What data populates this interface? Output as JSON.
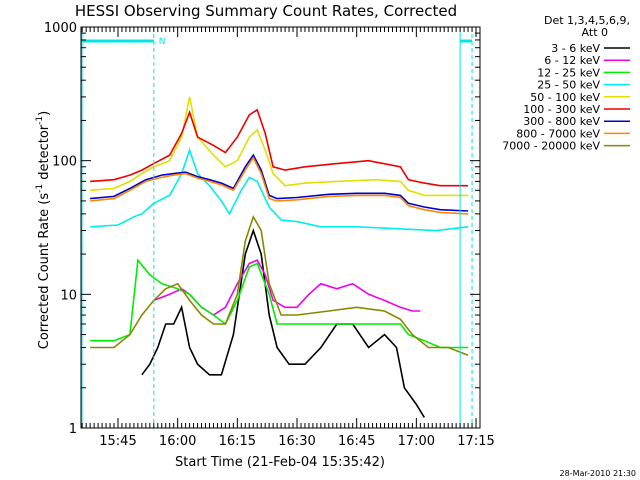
{
  "chart_data": {
    "type": "line",
    "title": "HESSI Observing Summary Count Rates, Corrected",
    "xlabel": "Start Time (21-Feb-04 15:35:42)",
    "ylabel_parts": [
      "Corrected Count Rate (s",
      "-1",
      " detector",
      "-1",
      ")"
    ],
    "yscale": "log",
    "ylim": [
      1,
      1000
    ],
    "xlim": [
      "15:35:42",
      "17:16:00"
    ],
    "y_ticks": [
      {
        "v": 1,
        "label": "1"
      },
      {
        "v": 10,
        "label": "10"
      },
      {
        "v": 100,
        "label": "100"
      },
      {
        "v": 1000,
        "label": "1000"
      }
    ],
    "x_ticks": [
      "15:45",
      "16:00",
      "16:15",
      "16:30",
      "16:45",
      "17:00",
      "17:15"
    ],
    "legend_header": [
      "Det 1,3,4,5,6,9,",
      "Att 0"
    ],
    "timestamp": "28-Mar-2010 21:30",
    "night_marks": {
      "label": "N",
      "day_start": "15:36",
      "night_start": "15:54",
      "night_end": "17:11",
      "day2_end": "17:14"
    },
    "series": [
      {
        "name": "3 - 6 keV",
        "color": "#000000",
        "points": [
          [
            "15:51",
            2.5
          ],
          [
            "15:53",
            3
          ],
          [
            "15:55",
            4
          ],
          [
            "15:57",
            6
          ],
          [
            "15:59",
            6
          ],
          [
            "16:01",
            8
          ],
          [
            "16:03",
            4
          ],
          [
            "16:05",
            3
          ],
          [
            "16:08",
            2.5
          ],
          [
            "16:11",
            2.5
          ],
          [
            "16:14",
            5
          ],
          [
            "16:17",
            20
          ],
          [
            "16:19",
            30
          ],
          [
            "16:21",
            20
          ],
          [
            "16:23",
            7
          ],
          [
            "16:25",
            4
          ],
          [
            "16:28",
            3
          ],
          [
            "16:32",
            3
          ],
          [
            "16:36",
            4
          ],
          [
            "16:40",
            6
          ],
          [
            "16:44",
            6
          ],
          [
            "16:48",
            4
          ],
          [
            "16:52",
            5
          ],
          [
            "16:55",
            4
          ],
          [
            "16:57",
            2
          ],
          [
            "17:00",
            1.5
          ],
          [
            "17:02",
            1.2
          ]
        ]
      },
      {
        "name": "6 - 12 keV",
        "color": "#ee00ee",
        "points": [
          [
            "15:54",
            9
          ],
          [
            "15:58",
            10
          ],
          [
            "16:01",
            11
          ],
          [
            "16:03",
            10
          ],
          [
            "16:06",
            8
          ],
          [
            "16:09",
            7
          ],
          [
            "16:12",
            8
          ],
          [
            "16:15",
            12
          ],
          [
            "16:18",
            17
          ],
          [
            "16:20",
            18
          ],
          [
            "16:22",
            14
          ],
          [
            "16:24",
            9
          ],
          [
            "16:27",
            8
          ],
          [
            "16:30",
            8
          ],
          [
            "16:33",
            10
          ],
          [
            "16:36",
            12
          ],
          [
            "16:40",
            11
          ],
          [
            "16:44",
            12
          ],
          [
            "16:48",
            10
          ],
          [
            "16:52",
            9
          ],
          [
            "16:56",
            8
          ],
          [
            "16:59",
            7.5
          ],
          [
            "17:01",
            7.5
          ]
        ]
      },
      {
        "name": "12 - 25 keV",
        "color": "#00ee00",
        "points": [
          [
            "15:38",
            4.5
          ],
          [
            "15:44",
            4.5
          ],
          [
            "15:48",
            5
          ],
          [
            "15:50",
            18
          ],
          [
            "15:53",
            14
          ],
          [
            "15:56",
            12
          ],
          [
            "16:00",
            11
          ],
          [
            "16:03",
            10
          ],
          [
            "16:06",
            8
          ],
          [
            "16:09",
            7
          ],
          [
            "16:12",
            6
          ],
          [
            "16:15",
            9
          ],
          [
            "16:18",
            16
          ],
          [
            "16:20",
            17
          ],
          [
            "16:23",
            10
          ],
          [
            "16:25",
            6
          ],
          [
            "16:30",
            6
          ],
          [
            "16:38",
            6
          ],
          [
            "16:45",
            6
          ],
          [
            "16:52",
            6
          ],
          [
            "16:56",
            6
          ],
          [
            "16:58",
            5
          ],
          [
            "17:02",
            4.5
          ],
          [
            "17:06",
            4
          ],
          [
            "17:13",
            4
          ]
        ]
      },
      {
        "name": "25 - 50 keV",
        "color": "#00eeee",
        "points": [
          [
            "15:38",
            32
          ],
          [
            "15:45",
            33
          ],
          [
            "15:49",
            38
          ],
          [
            "15:51",
            40
          ],
          [
            "15:54",
            48
          ],
          [
            "15:58",
            55
          ],
          [
            "16:01",
            80
          ],
          [
            "16:03",
            120
          ],
          [
            "16:05",
            80
          ],
          [
            "16:08",
            65
          ],
          [
            "16:11",
            50
          ],
          [
            "16:13",
            40
          ],
          [
            "16:16",
            60
          ],
          [
            "16:18",
            75
          ],
          [
            "16:20",
            70
          ],
          [
            "16:23",
            45
          ],
          [
            "16:26",
            36
          ],
          [
            "16:30",
            35
          ],
          [
            "16:36",
            32
          ],
          [
            "16:45",
            32
          ],
          [
            "16:55",
            31
          ],
          [
            "17:05",
            30
          ],
          [
            "17:13",
            32
          ]
        ]
      },
      {
        "name": "50 - 100 keV",
        "color": "#e0e000",
        "points": [
          [
            "15:38",
            60
          ],
          [
            "15:44",
            62
          ],
          [
            "15:48",
            70
          ],
          [
            "15:51",
            80
          ],
          [
            "15:54",
            90
          ],
          [
            "15:58",
            100
          ],
          [
            "16:01",
            150
          ],
          [
            "16:03",
            300
          ],
          [
            "16:05",
            150
          ],
          [
            "16:09",
            110
          ],
          [
            "16:12",
            90
          ],
          [
            "16:15",
            100
          ],
          [
            "16:18",
            150
          ],
          [
            "16:20",
            170
          ],
          [
            "16:22",
            120
          ],
          [
            "16:24",
            80
          ],
          [
            "16:27",
            65
          ],
          [
            "16:32",
            68
          ],
          [
            "16:40",
            70
          ],
          [
            "16:50",
            72
          ],
          [
            "16:56",
            70
          ],
          [
            "16:58",
            60
          ],
          [
            "17:02",
            55
          ],
          [
            "17:06",
            55
          ],
          [
            "17:13",
            55
          ]
        ]
      },
      {
        "name": "100 - 300 keV",
        "color": "#ee0000",
        "points": [
          [
            "15:38",
            70
          ],
          [
            "15:44",
            72
          ],
          [
            "15:48",
            78
          ],
          [
            "15:51",
            85
          ],
          [
            "15:54",
            95
          ],
          [
            "15:58",
            110
          ],
          [
            "16:01",
            160
          ],
          [
            "16:03",
            230
          ],
          [
            "16:05",
            150
          ],
          [
            "16:09",
            130
          ],
          [
            "16:12",
            115
          ],
          [
            "16:15",
            150
          ],
          [
            "16:18",
            220
          ],
          [
            "16:20",
            240
          ],
          [
            "16:22",
            160
          ],
          [
            "16:24",
            90
          ],
          [
            "16:27",
            85
          ],
          [
            "16:32",
            90
          ],
          [
            "16:40",
            95
          ],
          [
            "16:48",
            100
          ],
          [
            "16:56",
            90
          ],
          [
            "16:58",
            72
          ],
          [
            "17:02",
            68
          ],
          [
            "17:06",
            65
          ],
          [
            "17:13",
            65
          ]
        ]
      },
      {
        "name": "300 - 800 keV",
        "color": "#0000cc",
        "points": [
          [
            "15:38",
            52
          ],
          [
            "15:44",
            54
          ],
          [
            "15:48",
            62
          ],
          [
            "15:52",
            72
          ],
          [
            "15:56",
            78
          ],
          [
            "15:59",
            80
          ],
          [
            "16:02",
            82
          ],
          [
            "16:05",
            76
          ],
          [
            "16:08",
            72
          ],
          [
            "16:11",
            68
          ],
          [
            "16:14",
            62
          ],
          [
            "16:17",
            90
          ],
          [
            "16:19",
            110
          ],
          [
            "16:21",
            85
          ],
          [
            "16:23",
            55
          ],
          [
            "16:25",
            52
          ],
          [
            "16:30",
            53
          ],
          [
            "16:38",
            56
          ],
          [
            "16:45",
            57
          ],
          [
            "16:52",
            57
          ],
          [
            "16:56",
            55
          ],
          [
            "16:58",
            48
          ],
          [
            "17:02",
            45
          ],
          [
            "17:06",
            43
          ],
          [
            "17:13",
            42
          ]
        ]
      },
      {
        "name": "800 - 7000 keV",
        "color": "#ff8800",
        "points": [
          [
            "15:38",
            50
          ],
          [
            "15:44",
            52
          ],
          [
            "15:48",
            60
          ],
          [
            "15:52",
            70
          ],
          [
            "15:56",
            75
          ],
          [
            "15:59",
            78
          ],
          [
            "16:02",
            80
          ],
          [
            "16:05",
            74
          ],
          [
            "16:08",
            70
          ],
          [
            "16:11",
            66
          ],
          [
            "16:14",
            60
          ],
          [
            "16:17",
            85
          ],
          [
            "16:19",
            105
          ],
          [
            "16:21",
            80
          ],
          [
            "16:23",
            52
          ],
          [
            "16:25",
            50
          ],
          [
            "16:30",
            51
          ],
          [
            "16:38",
            54
          ],
          [
            "16:45",
            55
          ],
          [
            "16:52",
            55
          ],
          [
            "16:56",
            53
          ],
          [
            "16:58",
            46
          ],
          [
            "17:02",
            43
          ],
          [
            "17:06",
            41
          ],
          [
            "17:13",
            40
          ]
        ]
      },
      {
        "name": "7000 - 20000 keV",
        "color": "#888800",
        "points": [
          [
            "15:38",
            4
          ],
          [
            "15:44",
            4
          ],
          [
            "15:48",
            5
          ],
          [
            "15:51",
            7
          ],
          [
            "15:54",
            9
          ],
          [
            "15:57",
            11
          ],
          [
            "16:00",
            12
          ],
          [
            "16:03",
            9
          ],
          [
            "16:06",
            7
          ],
          [
            "16:09",
            6
          ],
          [
            "16:12",
            6
          ],
          [
            "16:15",
            10
          ],
          [
            "16:17",
            25
          ],
          [
            "16:19",
            38
          ],
          [
            "16:21",
            30
          ],
          [
            "16:23",
            12
          ],
          [
            "16:26",
            7
          ],
          [
            "16:30",
            7
          ],
          [
            "16:38",
            7.5
          ],
          [
            "16:45",
            8
          ],
          [
            "16:52",
            7.5
          ],
          [
            "16:56",
            6.5
          ],
          [
            "16:59",
            5
          ],
          [
            "17:03",
            4
          ],
          [
            "17:08",
            4
          ],
          [
            "17:13",
            3.5
          ]
        ]
      }
    ]
  }
}
